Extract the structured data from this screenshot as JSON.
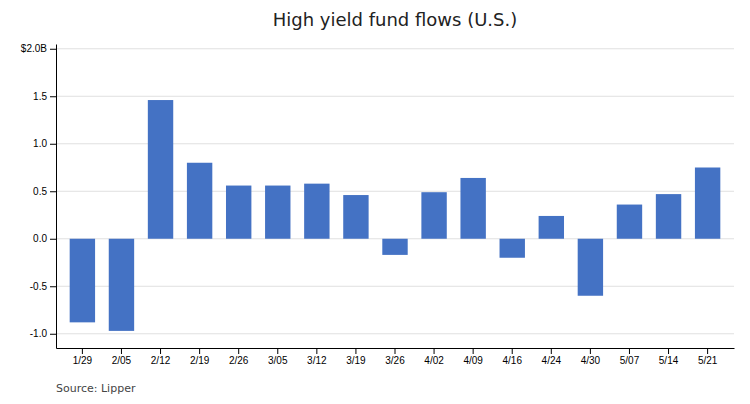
{
  "chart_data": {
    "type": "bar",
    "title": "High yield fund flows (U.S.)",
    "categories": [
      "1/29",
      "2/05",
      "2/12",
      "2/19",
      "2/26",
      "3/05",
      "3/12",
      "3/19",
      "3/26",
      "4/02",
      "4/09",
      "4/16",
      "4/24",
      "4/30",
      "5/07",
      "5/14",
      "5/21"
    ],
    "values": [
      -0.88,
      -0.97,
      1.46,
      0.8,
      0.56,
      0.56,
      0.58,
      0.46,
      -0.17,
      0.49,
      0.64,
      -0.2,
      0.24,
      -0.6,
      0.36,
      0.47,
      0.75
    ],
    "color": "#4472C4",
    "ylim": [
      -1.15,
      2.05
    ],
    "yticks": [
      {
        "value": -1.0,
        "label": "-1.0"
      },
      -0.5,
      {
        "value": 0.0,
        "label": "0.0"
      },
      0.5,
      {
        "value": 1.0,
        "label": "1.0"
      },
      1.5,
      {
        "value": 2.0,
        "label": "$2.0B"
      }
    ],
    "grid": true,
    "source": "Source: Lipper"
  }
}
